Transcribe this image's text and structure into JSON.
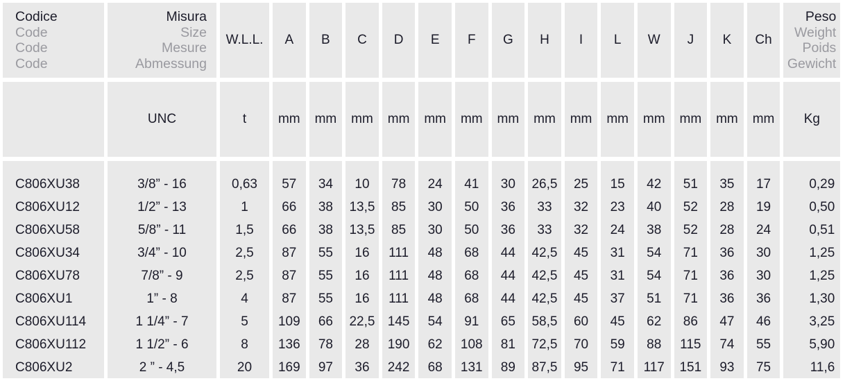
{
  "header": {
    "code": [
      "Codice",
      "Code",
      "Code",
      "Code"
    ],
    "size": [
      "Misura",
      "Size",
      "Mesure",
      "Abmessung"
    ],
    "wll": "W.L.L.",
    "dims": [
      "A",
      "B",
      "C",
      "D",
      "E",
      "F",
      "G",
      "H",
      "I",
      "L",
      "W",
      "J",
      "K",
      "Ch"
    ],
    "weight": [
      "Peso",
      "Weight",
      "Poids",
      "Gewicht"
    ]
  },
  "units": {
    "code": "",
    "size": "UNC",
    "wll": "t",
    "dims": [
      "mm",
      "mm",
      "mm",
      "mm",
      "mm",
      "mm",
      "mm",
      "mm",
      "mm",
      "mm",
      "mm",
      "mm",
      "mm",
      "mm"
    ],
    "weight": "Kg"
  },
  "rows": [
    [
      "C806XU38",
      "3/8” - 16",
      "0,63",
      "57",
      "34",
      "10",
      "78",
      "24",
      "41",
      "30",
      "26,5",
      "25",
      "15",
      "42",
      "51",
      "35",
      "17",
      "0,29"
    ],
    [
      "C806XU12",
      "1/2” - 13",
      "1",
      "66",
      "38",
      "13,5",
      "85",
      "30",
      "50",
      "36",
      "33",
      "32",
      "23",
      "40",
      "52",
      "28",
      "19",
      "0,50"
    ],
    [
      "C806XU58",
      "5/8” - 11",
      "1,5",
      "66",
      "38",
      "13,5",
      "85",
      "30",
      "50",
      "36",
      "33",
      "32",
      "24",
      "38",
      "52",
      "28",
      "24",
      "0,51"
    ],
    [
      "C806XU34",
      "3/4” - 10",
      "2,5",
      "87",
      "55",
      "16",
      "111",
      "48",
      "68",
      "44",
      "42,5",
      "45",
      "31",
      "54",
      "71",
      "36",
      "30",
      "1,25"
    ],
    [
      "C806XU78",
      "7/8” - 9",
      "2,5",
      "87",
      "55",
      "16",
      "111",
      "48",
      "68",
      "44",
      "42,5",
      "45",
      "31",
      "54",
      "71",
      "36",
      "30",
      "1,25"
    ],
    [
      "C806XU1",
      "1” - 8",
      "4",
      "87",
      "55",
      "16",
      "111",
      "48",
      "68",
      "44",
      "42,5",
      "45",
      "37",
      "51",
      "71",
      "36",
      "36",
      "1,30"
    ],
    [
      "C806XU114",
      "1 1/4” - 7",
      "5",
      "109",
      "66",
      "22,5",
      "145",
      "54",
      "91",
      "65",
      "58,5",
      "60",
      "45",
      "62",
      "86",
      "47",
      "46",
      "3,25"
    ],
    [
      "C806XU112",
      "1 1/2” - 6",
      "8",
      "136",
      "78",
      "28",
      "190",
      "62",
      "108",
      "81",
      "72,5",
      "70",
      "59",
      "88",
      "115",
      "74",
      "55",
      "5,90"
    ],
    [
      "C806XU2",
      "2 ” - 4,5",
      "20",
      "169",
      "97",
      "36",
      "242",
      "68",
      "131",
      "89",
      "87,5",
      "95",
      "71",
      "117",
      "151",
      "93",
      "75",
      "11,6"
    ]
  ]
}
